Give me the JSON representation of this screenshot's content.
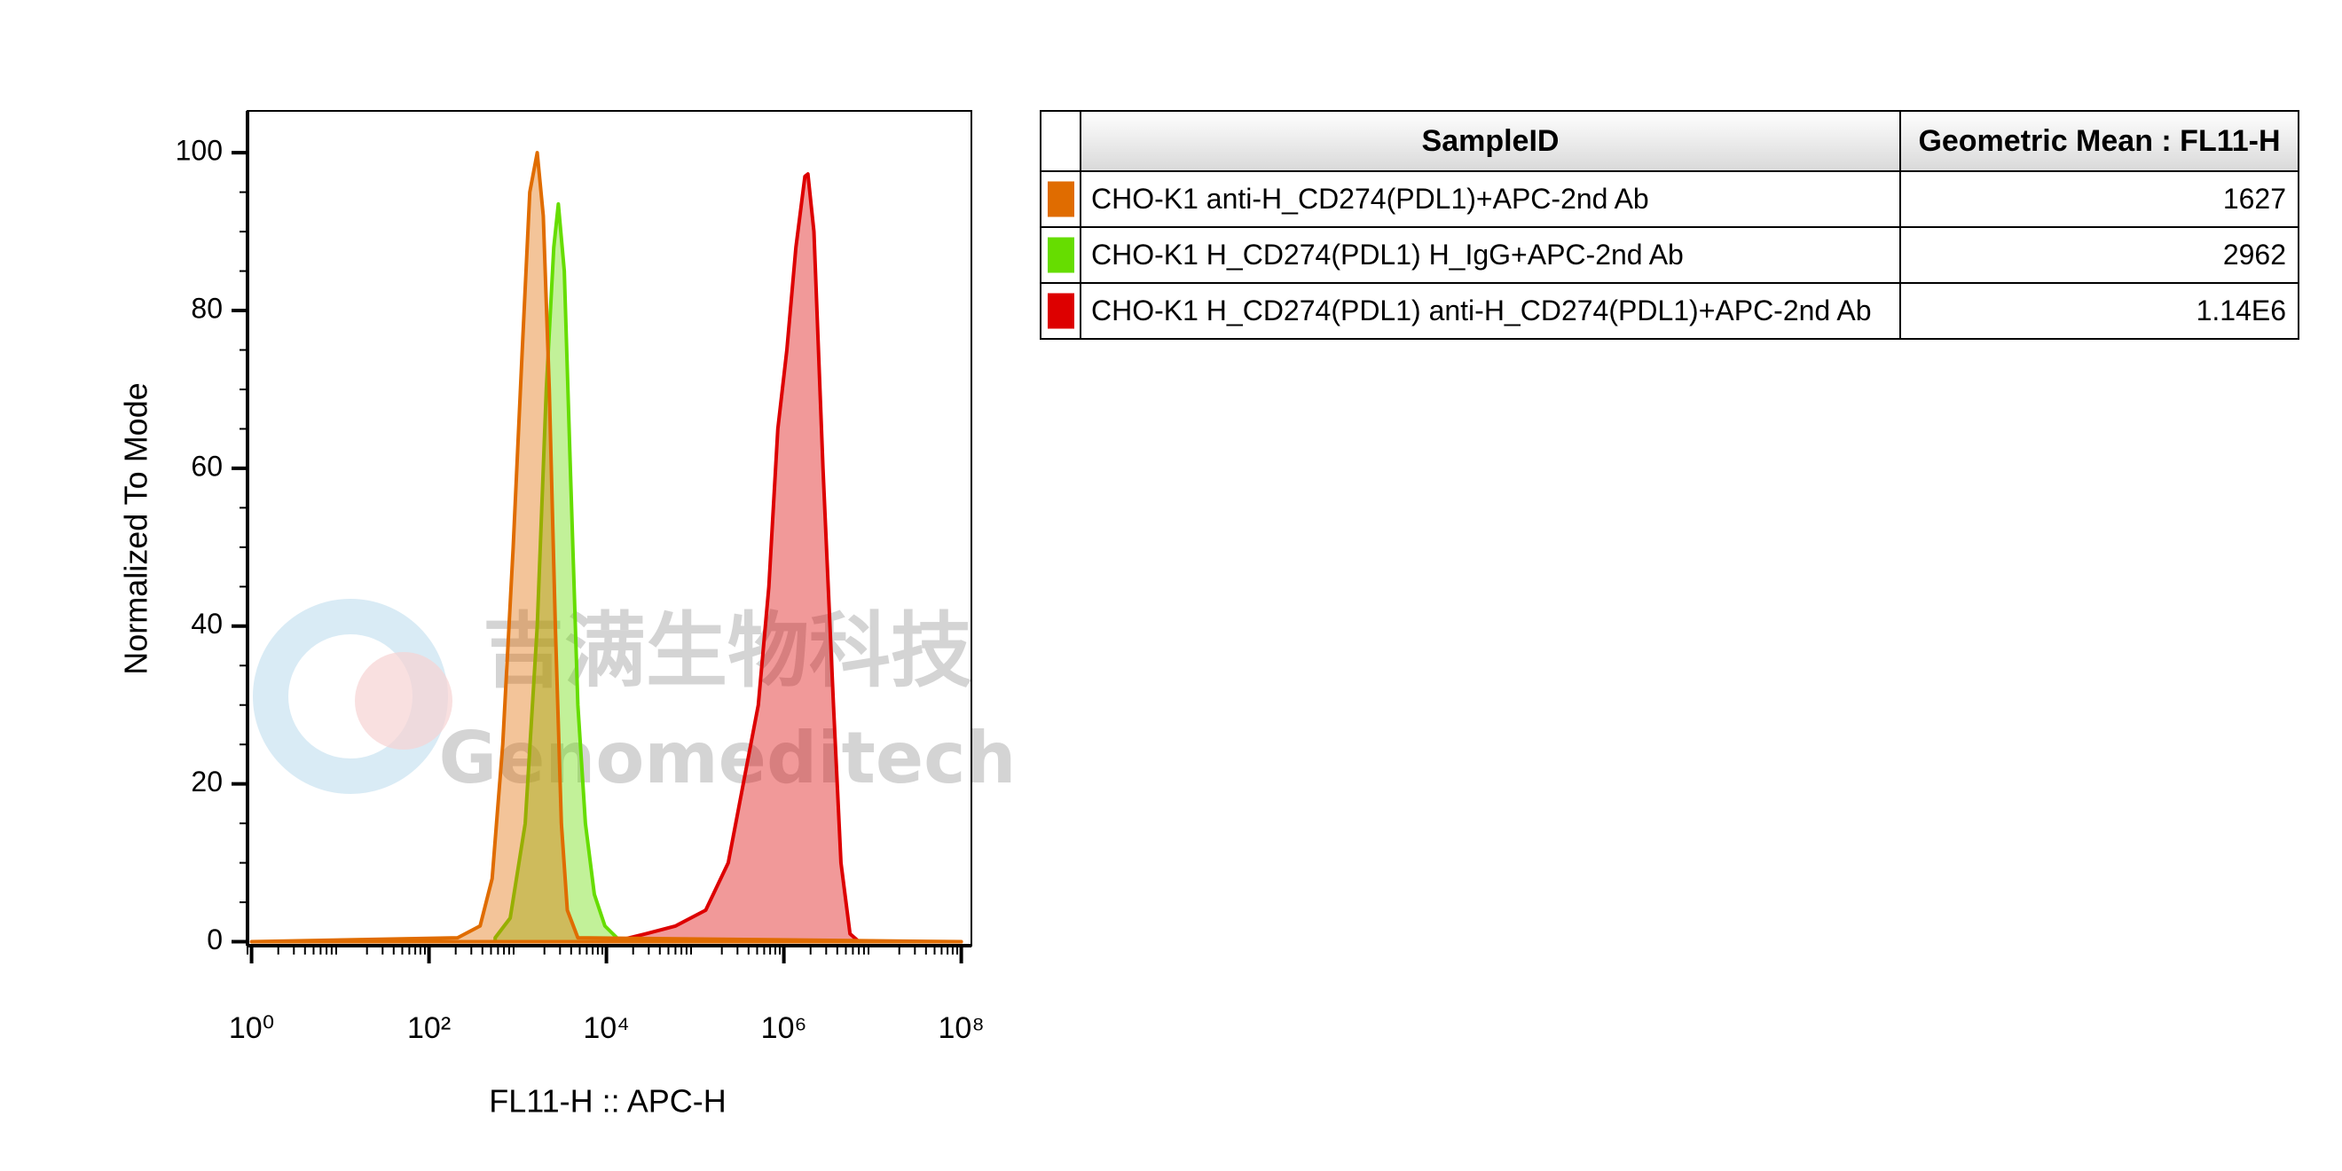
{
  "chart_data": {
    "type": "histogram",
    "x_label": "FL11-H :: APC-H",
    "y_label": "Normalized To Mode",
    "log_x": true,
    "xlim": [
      0.9,
      130000000
    ],
    "xticks": [
      {
        "value": 1,
        "label": "10⁰"
      },
      {
        "value": 100,
        "label": "10²"
      },
      {
        "value": 10000,
        "label": "10⁴"
      },
      {
        "value": 1000000,
        "label": "10⁶"
      },
      {
        "value": 100000000,
        "label": "10⁸"
      }
    ],
    "ylim": [
      -0.5,
      105.3
    ],
    "yticks": [
      0,
      20,
      40,
      60,
      80,
      100
    ],
    "table_columns": [
      "SampleID",
      "Geometric Mean : FL11-H"
    ],
    "watermark": [
      "吉满生物科技",
      "Genomeditech"
    ],
    "series": [
      {
        "name": "CHO-K1 anti-H_CD274(PDL1)+APC-2nd Ab",
        "color": "#e06c00",
        "geometric_mean": "1627",
        "x": [
          1,
          210,
          377,
          515,
          678,
          889,
          1125,
          1368,
          1660,
          1942,
          2270,
          2655,
          3105,
          3625,
          4765,
          100000000
        ],
        "values": [
          0,
          0.5,
          2,
          8,
          25,
          50,
          75,
          95,
          100,
          92,
          70,
          40,
          15,
          4,
          0.5,
          0
        ]
      },
      {
        "name": "CHO-K1 H_CD274(PDL1) H_IgG+APC-2nd Ab",
        "color": "#66dd00",
        "geometric_mean": "2962",
        "x": [
          557,
          823,
          1215,
          1660,
          2100,
          2550,
          2870,
          3350,
          3920,
          4765,
          5795,
          7310,
          9610,
          13670
        ],
        "values": [
          0.5,
          3,
          15,
          40,
          70,
          88,
          93.5,
          85,
          60,
          30,
          15,
          6,
          2,
          0.3
        ]
      },
      {
        "name": "CHO-K1 H_CD274(PDL1) anti-H_CD274(PDL1)+APC-2nd Ab",
        "color": "#dd0000",
        "geometric_mean": "1.14E6",
        "x": [
          15350,
          27600,
          60250,
          131500,
          236000,
          348500,
          515000,
          677500,
          855000,
          1081000,
          1367000,
          1727000,
          1867000,
          2183000,
          2761000,
          3625000,
          4403000,
          5569000,
          7033000
        ],
        "values": [
          0.3,
          1,
          2,
          4,
          10,
          20,
          30,
          45,
          65,
          75,
          88,
          97,
          97.3,
          90,
          60,
          30,
          10,
          1,
          0
        ]
      }
    ]
  }
}
